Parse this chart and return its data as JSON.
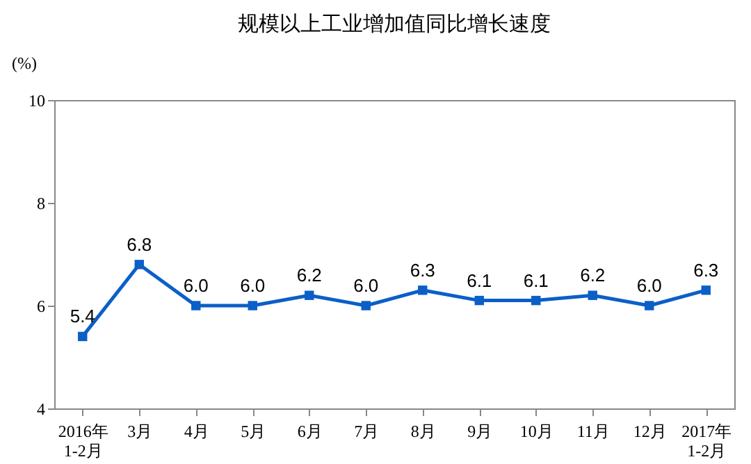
{
  "chart_data": {
    "type": "line",
    "title": "规模以上工业增加值同比增长速度",
    "ylabel": "(%)",
    "categories": [
      "2016年\n1-2月",
      "3月",
      "4月",
      "5月",
      "6月",
      "7月",
      "8月",
      "9月",
      "10月",
      "11月",
      "12月",
      "2017年\n1-2月"
    ],
    "series": [
      {
        "color": "#0b5fc7",
        "values": [
          5.4,
          6.8,
          6.0,
          6.0,
          6.2,
          6.0,
          6.3,
          6.1,
          6.1,
          6.2,
          6.0,
          6.3
        ],
        "value_labels": [
          "5.4",
          "6.8",
          "6.0",
          "6.0",
          "6.2",
          "6.0",
          "6.3",
          "6.1",
          "6.1",
          "6.2",
          "6.0",
          "6.3"
        ]
      }
    ],
    "ylim": [
      4,
      10
    ],
    "yticks": [
      4,
      6,
      8,
      10
    ],
    "grid": false,
    "legend": false,
    "marker": "square",
    "line_style": "solid"
  }
}
